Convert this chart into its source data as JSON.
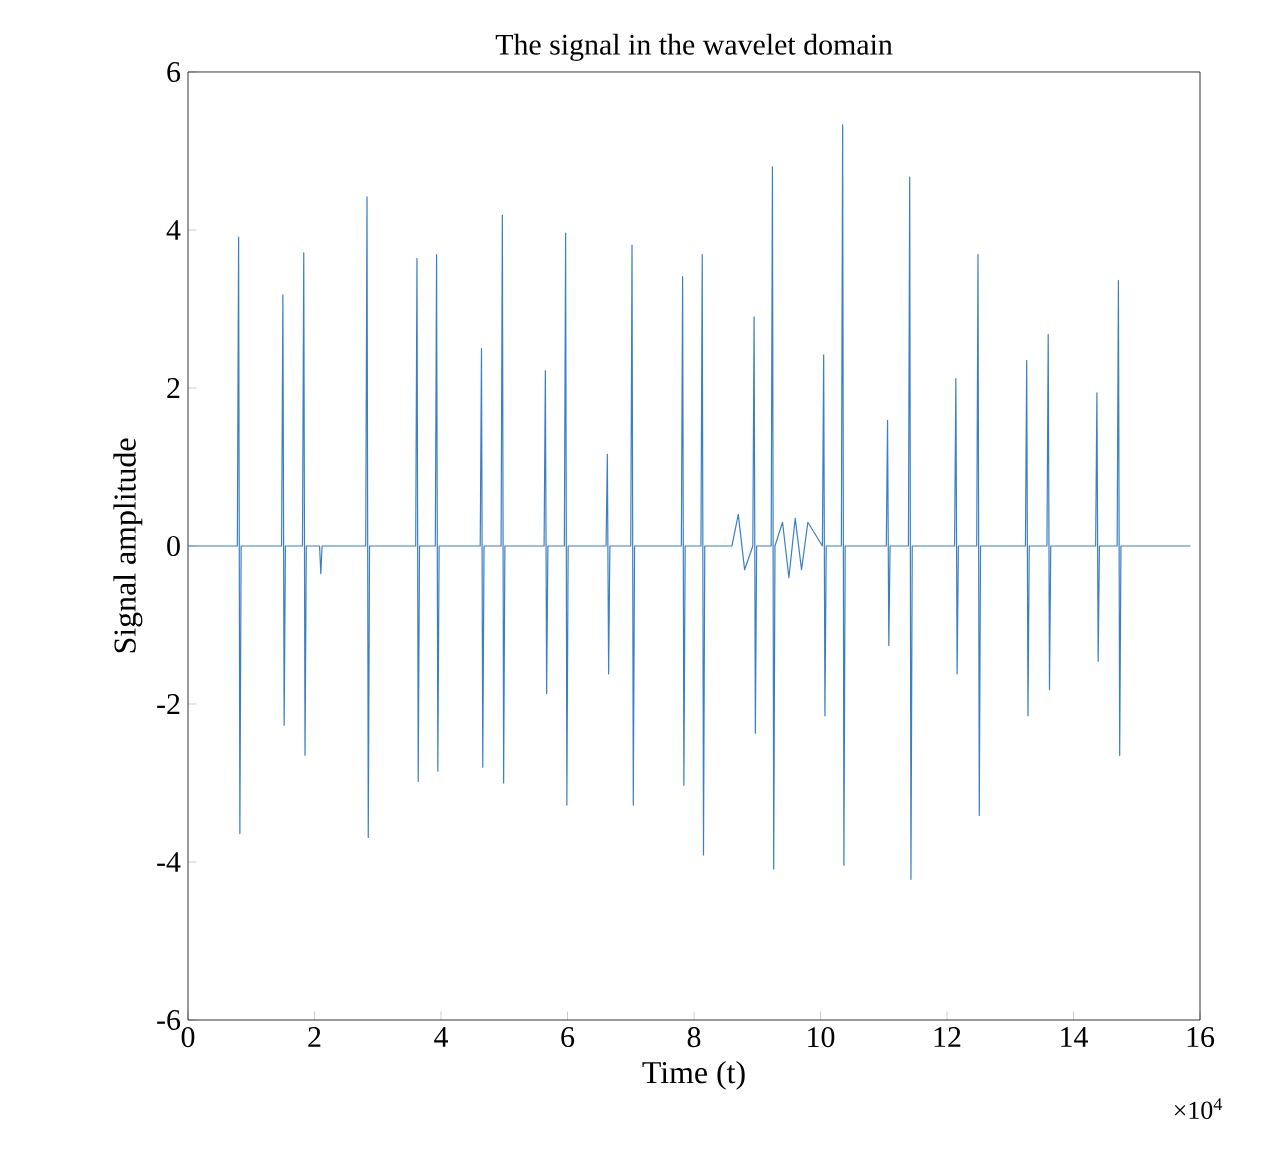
{
  "chart_data": {
    "type": "line",
    "title": "The signal in the wavelet domain",
    "xlabel": "Time (t)",
    "ylabel": "Signal amplitude",
    "annotations": [
      "×10$^{4}$"
    ],
    "xlim": [
      0,
      16
    ],
    "ylim": [
      -6,
      6
    ],
    "xticks": [
      0,
      2,
      4,
      6,
      8,
      10,
      12,
      14,
      16
    ],
    "yticks": [
      -6,
      -4,
      -2,
      0,
      2,
      4,
      6
    ],
    "marker": "none",
    "line_style": "solid",
    "series": [
      {
        "color": "#3b80c3",
        "x": [
          0,
          0.78,
          0.8,
          0.82,
          0.84,
          1.48,
          1.5,
          1.52,
          1.54,
          1.81,
          1.83,
          1.85,
          1.87,
          2.08,
          2.1,
          2.12,
          2.81,
          2.83,
          2.85,
          2.87,
          3.6,
          3.62,
          3.64,
          3.66,
          3.91,
          3.93,
          3.95,
          3.97,
          4.62,
          4.64,
          4.66,
          4.68,
          4.95,
          4.97,
          4.99,
          5.01,
          5.63,
          5.65,
          5.67,
          5.69,
          5.95,
          5.97,
          5.99,
          6.01,
          6.61,
          6.63,
          6.65,
          6.67,
          7.0,
          7.02,
          7.04,
          7.06,
          7.8,
          7.82,
          7.84,
          7.86,
          8.11,
          8.13,
          8.15,
          8.17,
          8.6,
          8.7,
          8.8,
          8.93,
          8.95,
          8.97,
          8.99,
          9.22,
          9.24,
          9.26,
          9.28,
          9.4,
          9.5,
          9.6,
          9.7,
          9.8,
          10.03,
          10.05,
          10.07,
          10.09,
          10.33,
          10.35,
          10.37,
          10.39,
          11.04,
          11.06,
          11.08,
          11.1,
          11.39,
          11.41,
          11.43,
          11.45,
          12.12,
          12.14,
          12.16,
          12.18,
          12.47,
          12.49,
          12.51,
          12.53,
          13.24,
          13.26,
          13.28,
          13.3,
          13.58,
          13.6,
          13.62,
          13.64,
          14.35,
          14.37,
          14.39,
          14.41,
          14.69,
          14.71,
          14.73,
          14.75,
          15.85
        ],
        "values": [
          0,
          0,
          3.91,
          -3.64,
          0,
          0,
          3.18,
          -2.27,
          0,
          0,
          3.71,
          -2.65,
          0,
          0,
          -0.35,
          0,
          0,
          4.42,
          -3.69,
          0,
          0,
          3.64,
          -2.98,
          0,
          0,
          3.69,
          -2.85,
          0,
          0,
          2.5,
          -2.8,
          0,
          0,
          4.19,
          -3.0,
          0,
          0,
          2.22,
          -1.87,
          0,
          0,
          3.96,
          -3.28,
          0,
          0,
          1.16,
          -1.62,
          0,
          0,
          3.81,
          -3.28,
          0,
          0,
          3.41,
          -3.03,
          0,
          0,
          3.69,
          -3.91,
          0,
          0,
          0.4,
          -0.3,
          0,
          2.9,
          -2.37,
          0,
          0,
          4.8,
          -4.09,
          0,
          0.3,
          -0.4,
          0.35,
          -0.3,
          0.3,
          0,
          2.42,
          -2.15,
          0,
          0,
          5.33,
          -4.04,
          0,
          0,
          1.59,
          -1.26,
          0,
          0,
          4.67,
          -4.22,
          0,
          0,
          2.12,
          -1.62,
          0,
          0,
          3.69,
          -3.41,
          0,
          0,
          2.35,
          -2.15,
          0,
          0,
          2.68,
          -1.82,
          0,
          0,
          1.94,
          -1.46,
          0,
          0,
          3.36,
          -2.65,
          0,
          0
        ]
      }
    ]
  }
}
